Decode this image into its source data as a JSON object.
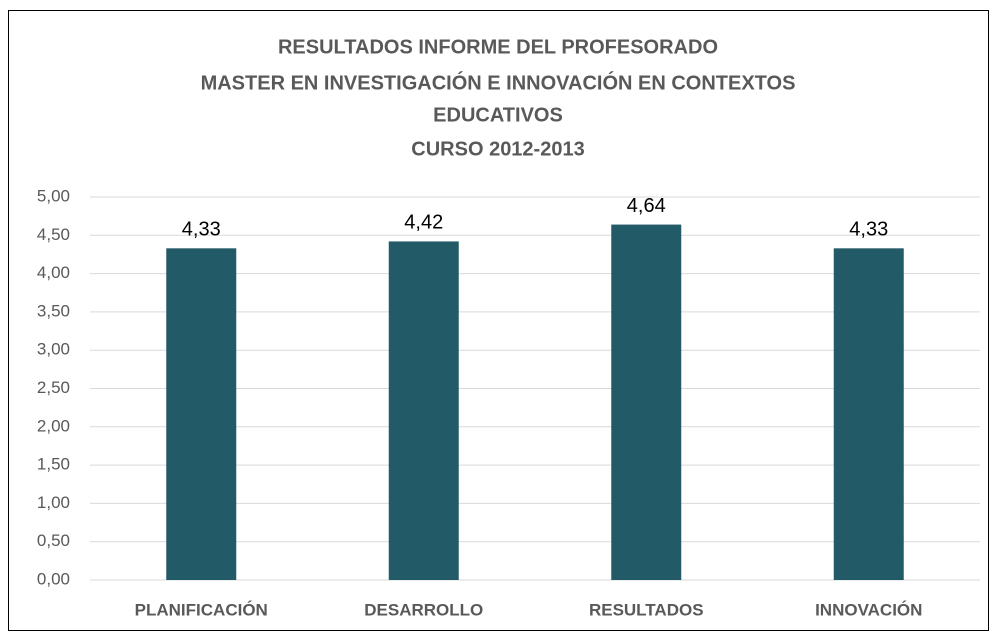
{
  "chart_data": {
    "type": "bar",
    "title": [
      "RESULTADOS INFORME DEL PROFESORADO",
      "MASTER EN INVESTIGACIÓN E INNOVACIÓN EN CONTEXTOS",
      "EDUCATIVOS",
      "CURSO 2012-2013"
    ],
    "categories": [
      "PLANIFICACIÓN",
      "DESARROLLO",
      "RESULTADOS",
      "INNOVACIÓN"
    ],
    "values": [
      4.33,
      4.42,
      4.64,
      4.33
    ],
    "value_labels": [
      "4,33",
      "4,42",
      "4,64",
      "4,33"
    ],
    "color": "#235a68",
    "ylim": [
      0,
      5
    ],
    "yticks": [
      {
        "value": 0,
        "label": "0,00"
      },
      {
        "value": 0.5,
        "label": "0,50"
      },
      {
        "value": 1,
        "label": "1,00"
      },
      {
        "value": 1.5,
        "label": "1,50"
      },
      {
        "value": 2,
        "label": "2,00"
      },
      {
        "value": 2.5,
        "label": "2,50"
      },
      {
        "value": 3,
        "label": "3,00"
      },
      {
        "value": 3.5,
        "label": "3,50"
      },
      {
        "value": 4,
        "label": "4,00"
      },
      {
        "value": 4.5,
        "label": "4,50"
      },
      {
        "value": 5,
        "label": "5,00"
      }
    ],
    "grid": true
  }
}
